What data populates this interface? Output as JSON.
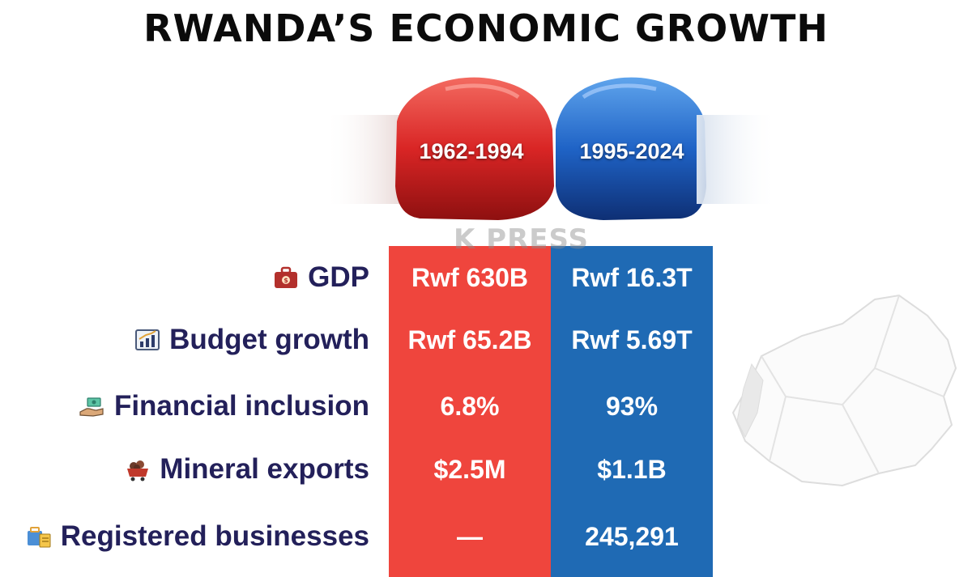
{
  "title": "RWANDA’S ECONOMIC GROWTH",
  "periods": [
    "1962-1994",
    "1995-2024"
  ],
  "watermark": "K PRESS",
  "rows": [
    {
      "label": "GDP",
      "icon": "money-bag-icon",
      "before": "Rwf 630B",
      "after": "Rwf 16.3T"
    },
    {
      "label": "Budget growth",
      "icon": "bar-chart-icon",
      "before": "Rwf 65.2B",
      "after": "Rwf 5.69T"
    },
    {
      "label": "Financial inclusion",
      "icon": "hand-money-icon",
      "before": "6.8%",
      "after": "93%"
    },
    {
      "label": "Mineral exports",
      "icon": "mine-cart-icon",
      "before": "$2.5M",
      "after": "$1.1B"
    },
    {
      "label": "Registered businesses",
      "icon": "business-documents-icon",
      "before": "—",
      "after": "245,291"
    }
  ],
  "colors": {
    "before": "#ef453d",
    "after": "#1f6ab4",
    "label": "#23205a"
  }
}
